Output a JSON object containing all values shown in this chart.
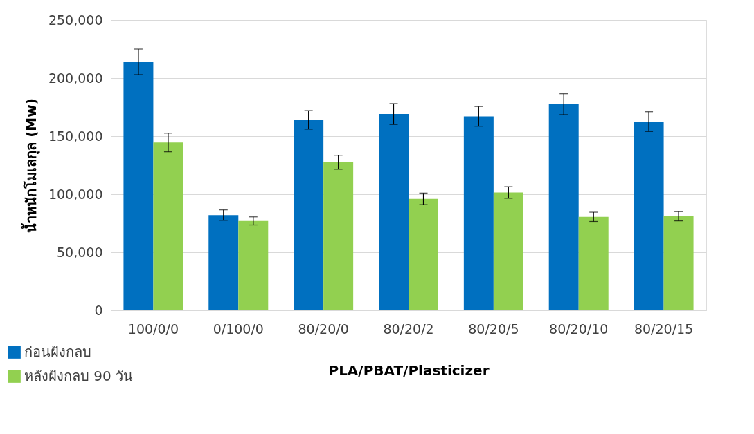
{
  "chart_data": {
    "type": "bar",
    "xlabel": "PLA/PBAT/Plasticizer",
    "ylabel": "น้ำหนักโมเลกุล (Mw)",
    "categories": [
      "100/0/0",
      "0/100/0",
      "80/20/0",
      "80/20/2",
      "80/20/5",
      "80/20/10",
      "80/20/15"
    ],
    "series": [
      {
        "name": "ก่อนฝังกลบ",
        "color": "#0070c0",
        "values": [
          214000,
          82000,
          164000,
          169000,
          167000,
          177500,
          162500
        ],
        "errors": [
          11000,
          4500,
          8000,
          9000,
          8500,
          9000,
          8500
        ]
      },
      {
        "name": "หลังฝังกลบ 90 วัน",
        "color": "#92d050",
        "values": [
          144500,
          77000,
          127500,
          96000,
          101500,
          80500,
          81000
        ],
        "errors": [
          8000,
          3500,
          6000,
          5000,
          5000,
          4000,
          4000
        ]
      }
    ],
    "ylim": [
      0,
      250000
    ],
    "yticks": [
      {
        "value": 0,
        "label": "0"
      },
      {
        "value": 50000,
        "label": "50,000"
      },
      {
        "value": 100000,
        "label": "100,000"
      },
      {
        "value": 150000,
        "label": "150,000"
      },
      {
        "value": 200000,
        "label": "200,000"
      },
      {
        "value": 250000,
        "label": "250,000"
      }
    ],
    "grid": "y",
    "legend": "bottom left"
  }
}
